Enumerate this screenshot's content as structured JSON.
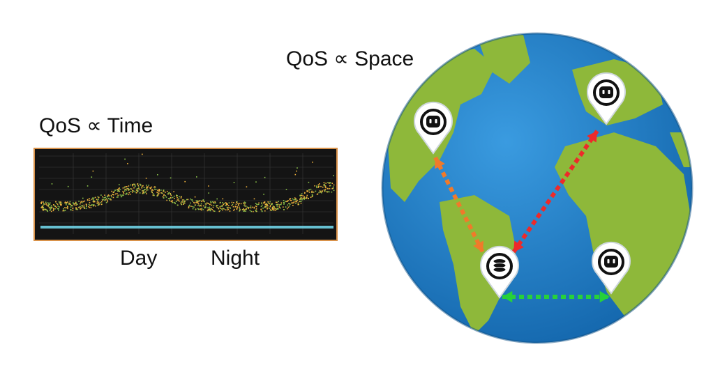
{
  "labels": {
    "time_title": "QoS ∝ Time",
    "space_title": "QoS ∝ Space",
    "day": "Day",
    "night": "Night"
  },
  "colors": {
    "chart_background": "#141414",
    "chart_border": "#d9924a",
    "points_orange": "#f0b23c",
    "points_green": "#8cc34a",
    "baseline_cyan": "#6fd3e6",
    "ocean": "#1f78c1",
    "land": "#8eb83a",
    "link_user_to_server": "#f07a2a",
    "link_europe": "#ee2a2a",
    "link_africa": "#27d13a",
    "pin_fill": "#ffffff",
    "pin_stroke": "#111111"
  },
  "globe": {
    "icons": [
      "user-robot-icon",
      "user-robot-icon",
      "user-robot-icon",
      "database-server-icon"
    ],
    "links": [
      "user-to-server-link",
      "europe-to-server-link",
      "africa-to-server-link"
    ]
  }
}
